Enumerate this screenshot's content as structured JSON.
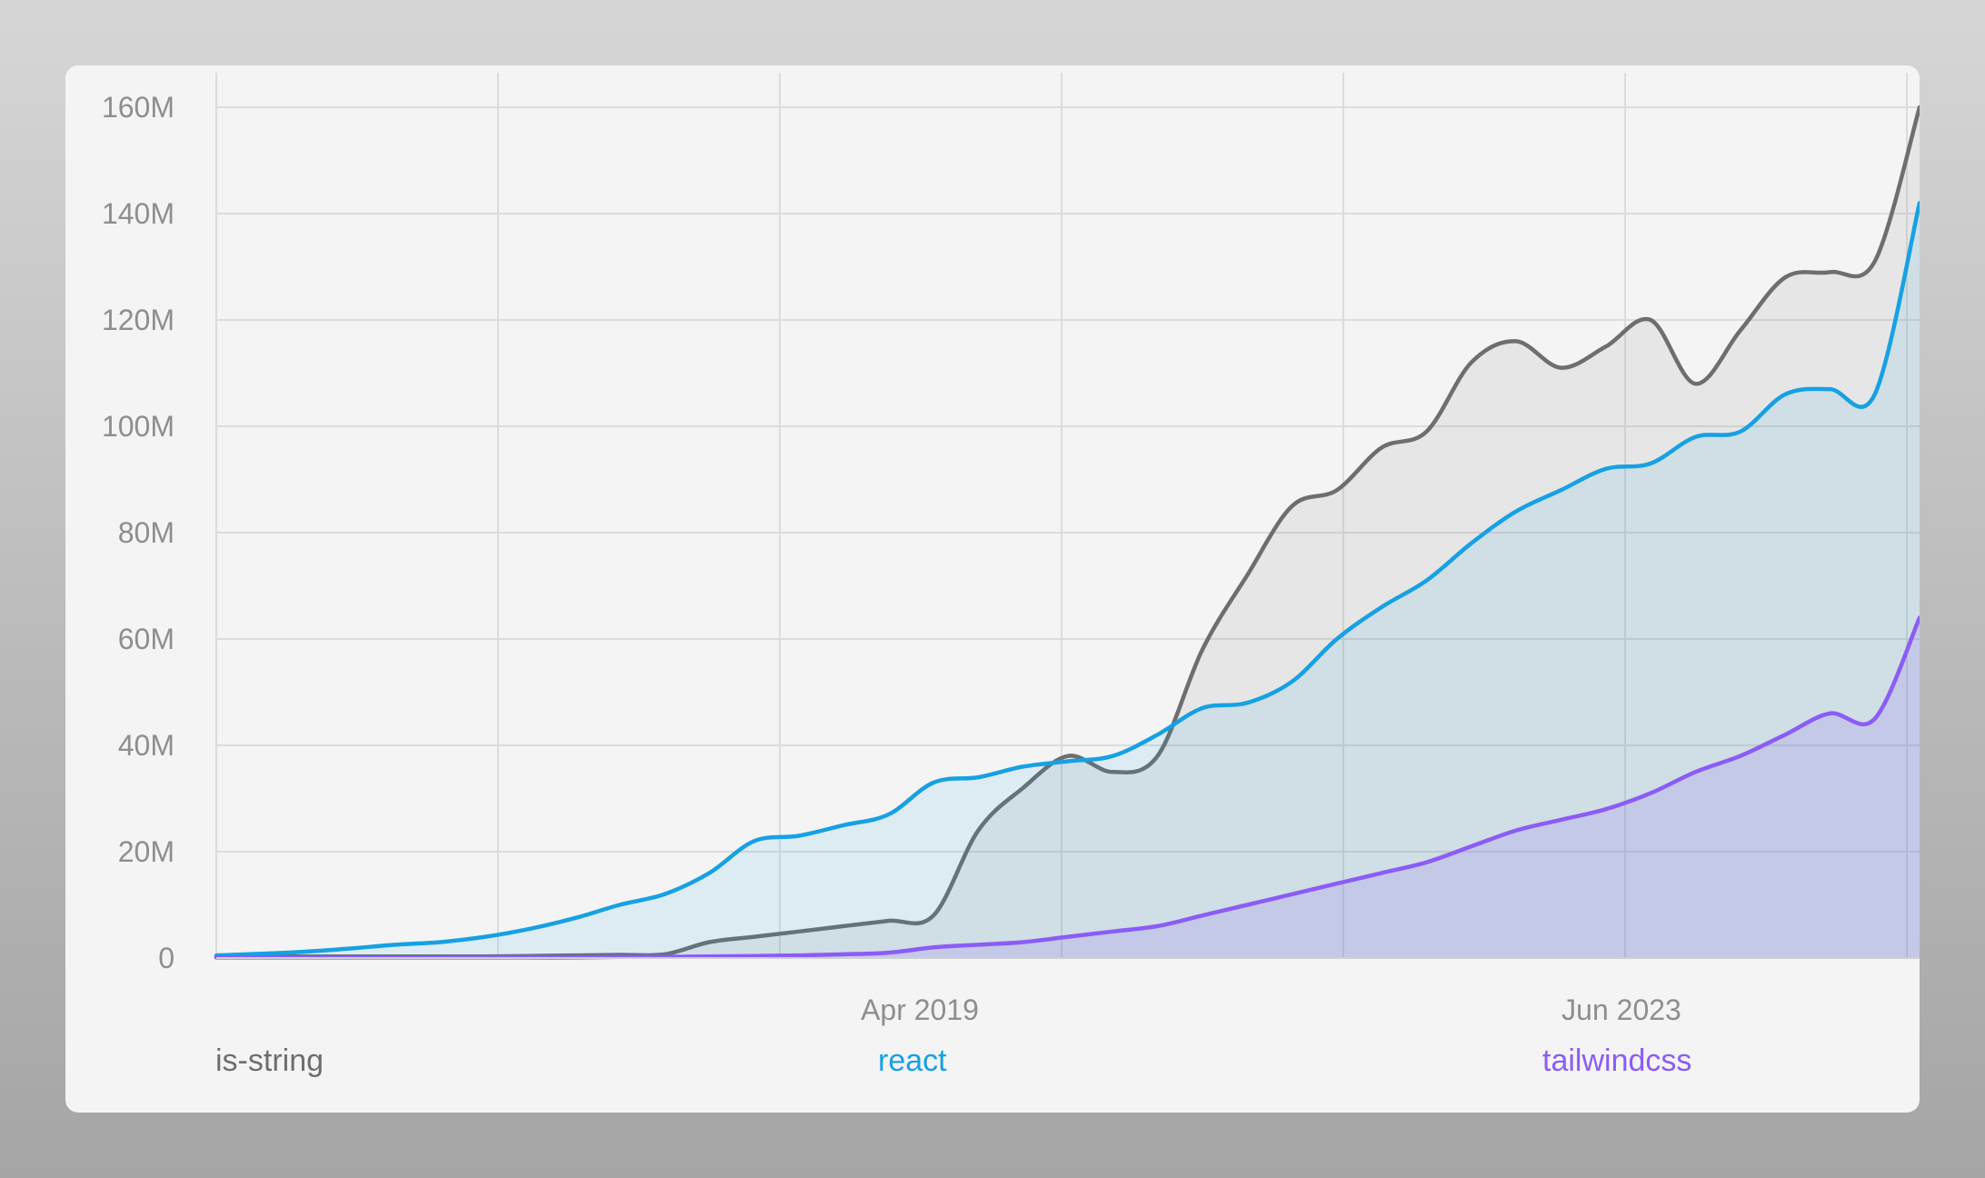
{
  "chart_data": {
    "type": "area",
    "title": "",
    "xlabel": "",
    "ylabel": "",
    "x_tick_labels": [
      "Apr 2019",
      "Jun 2023"
    ],
    "y_tick_labels": [
      "0",
      "20M",
      "40M",
      "60M",
      "80M",
      "100M",
      "120M",
      "140M",
      "160M"
    ],
    "y_ticks": [
      0,
      20000000,
      40000000,
      60000000,
      80000000,
      100000000,
      120000000,
      140000000,
      160000000
    ],
    "ylim": [
      0,
      160000000
    ],
    "xlim": [
      "2016-03-01",
      "2025-09-01"
    ],
    "grid": true,
    "legend_position": "bottom",
    "x": [
      "2016-03",
      "2016-06",
      "2016-09",
      "2016-12",
      "2017-03",
      "2017-06",
      "2017-09",
      "2017-12",
      "2018-03",
      "2018-06",
      "2018-09",
      "2018-12",
      "2019-03",
      "2019-06",
      "2019-09",
      "2019-12",
      "2020-03",
      "2020-06",
      "2020-09",
      "2020-12",
      "2021-03",
      "2021-06",
      "2021-09",
      "2021-12",
      "2022-03",
      "2022-06",
      "2022-09",
      "2022-12",
      "2023-03",
      "2023-06",
      "2023-09",
      "2023-12",
      "2024-03",
      "2024-06",
      "2024-09",
      "2024-12",
      "2025-03",
      "2025-06",
      "2025-09"
    ],
    "series": [
      {
        "name": "is-string",
        "color": "#6e6e6e",
        "values": [
          0.3,
          0.3,
          0.3,
          0.3,
          0.3,
          0.3,
          0.3,
          0.4,
          0.5,
          0.6,
          0.7,
          3.0,
          4.0,
          5.0,
          6.0,
          7.0,
          8.0,
          24.0,
          32.0,
          38.0,
          35.0,
          38.0,
          58.0,
          72.0,
          85.0,
          88.0,
          96.0,
          99.0,
          112.0,
          116.0,
          111.0,
          115.0,
          120.0,
          108.0,
          118.0,
          128.0,
          129.0,
          131.0,
          160.0
        ]
      },
      {
        "name": "react",
        "color": "#16a1e3",
        "values": [
          0.5,
          0.8,
          1.2,
          1.8,
          2.5,
          3.0,
          4.0,
          5.5,
          7.5,
          10.0,
          12.0,
          16.0,
          22.0,
          23.0,
          25.0,
          27.0,
          33.0,
          34.0,
          36.0,
          37.0,
          38.0,
          42.0,
          47.0,
          48.0,
          52.0,
          60.0,
          66.0,
          71.0,
          78.0,
          84.0,
          88.0,
          92.0,
          93.0,
          98.0,
          99.0,
          106.0,
          107.0,
          106.0,
          142.0
        ]
      },
      {
        "name": "tailwindcss",
        "color": "#8b5cf6",
        "values": [
          0.1,
          0.1,
          0.1,
          0.1,
          0.1,
          0.1,
          0.1,
          0.1,
          0.1,
          0.2,
          0.2,
          0.3,
          0.4,
          0.5,
          0.7,
          1.0,
          2.0,
          2.5,
          3.0,
          4.0,
          5.0,
          6.0,
          8.0,
          10.0,
          12.0,
          14.0,
          16.0,
          18.0,
          21.0,
          24.0,
          26.0,
          28.0,
          31.0,
          35.0,
          38.0,
          42.0,
          46.0,
          45.0,
          64.0
        ]
      }
    ]
  },
  "legend": [
    {
      "label": "is-string",
      "color": "#6e6e6e"
    },
    {
      "label": "react",
      "color": "#16a1e3"
    },
    {
      "label": "tailwindcss",
      "color": "#8b5cf6"
    }
  ]
}
